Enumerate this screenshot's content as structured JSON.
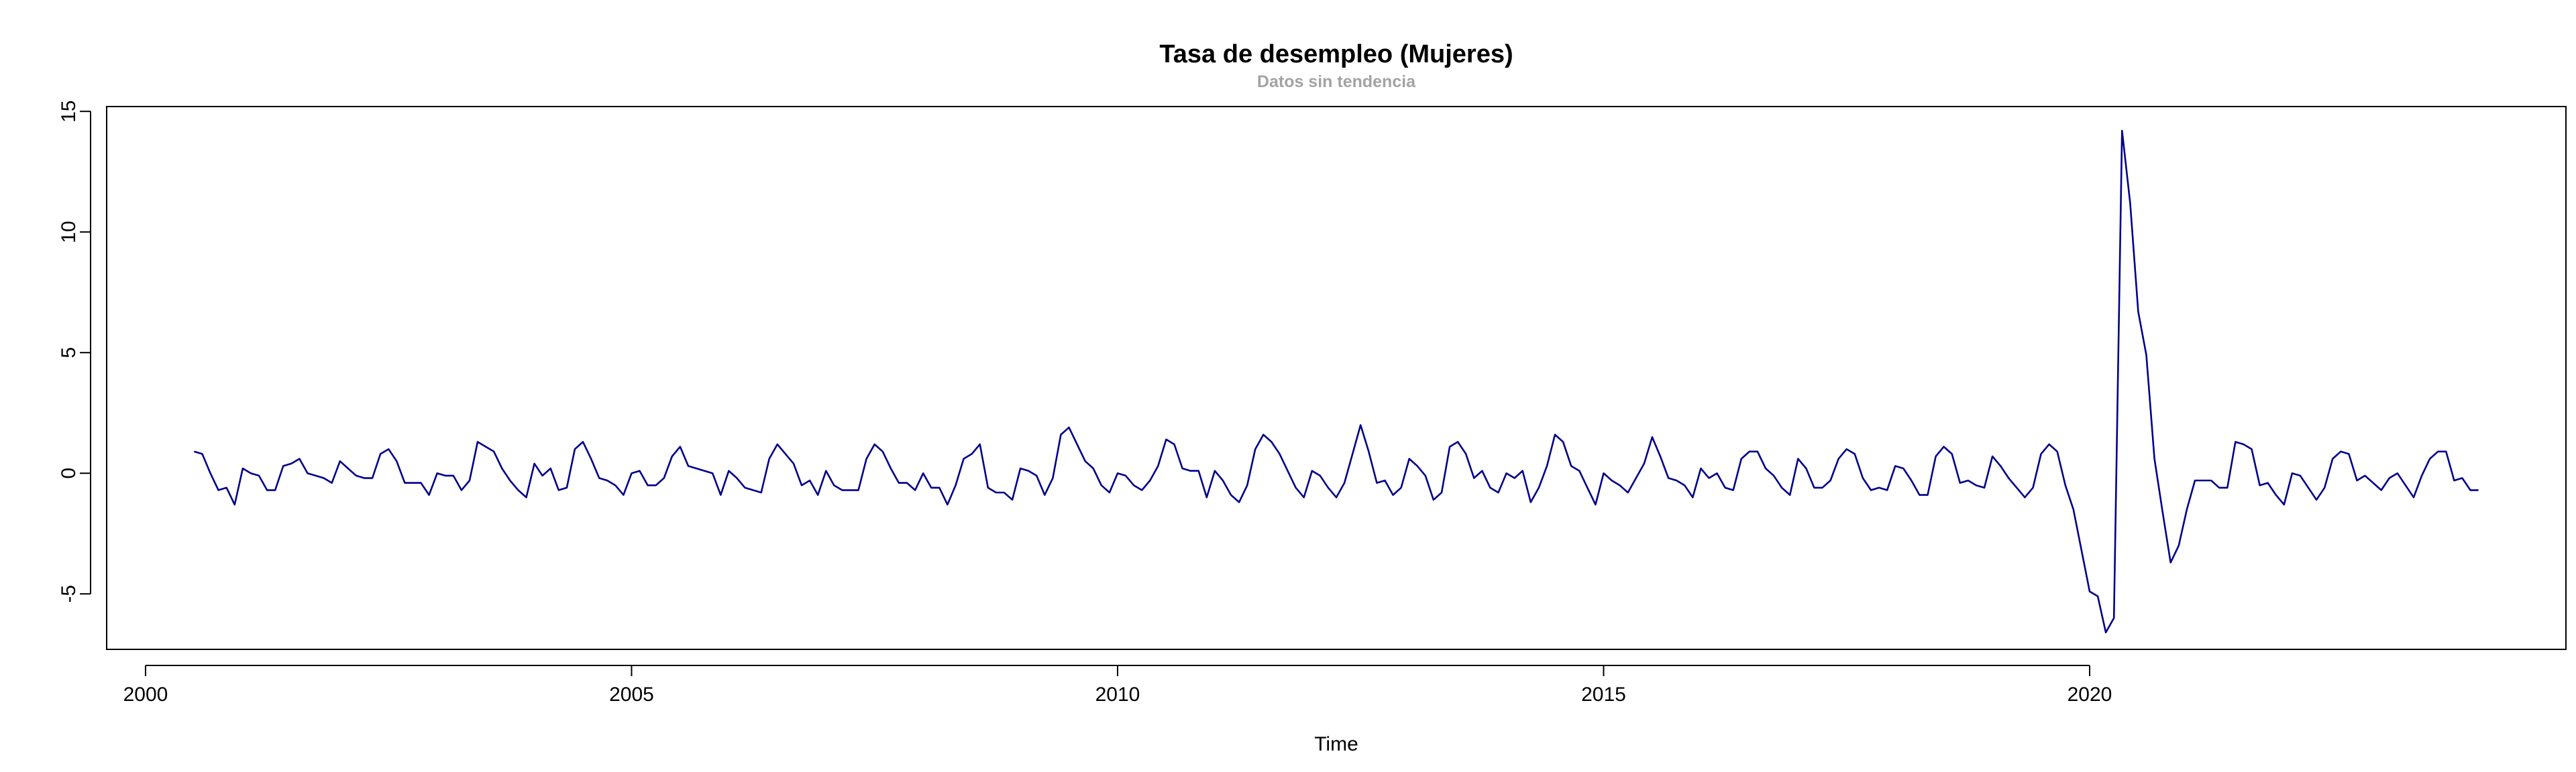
{
  "chart_data": {
    "type": "line",
    "title": "Tasa de desempleo (Mujeres)",
    "subtitle": "Datos sin tendencia",
    "xlabel": "Time",
    "ylabel": "",
    "xlim": [
      1999.6,
      2024.9
    ],
    "ylim": [
      -7.3,
      15.2
    ],
    "x_ticks": [
      2000,
      2005,
      2010,
      2015,
      2020
    ],
    "x_tick_labels": [
      "2000",
      "2005",
      "2010",
      "2015",
      "2020"
    ],
    "y_ticks": [
      -5,
      0,
      5,
      10,
      15
    ],
    "y_tick_labels": [
      "-5",
      "0",
      "5",
      "10",
      "15"
    ],
    "series_color": "#00008B",
    "box": true,
    "grid": false,
    "series": [
      {
        "start": 2000.5,
        "frequency": 12,
        "values": [
          0.9,
          0.8,
          0.0,
          -0.7,
          -0.6,
          -1.3,
          0.2,
          0.0,
          -0.1,
          -0.7,
          -0.7,
          0.3,
          0.4,
          0.6,
          0.0,
          -0.1,
          -0.2,
          -0.4,
          0.5,
          0.2,
          -0.1,
          -0.2,
          -0.2,
          0.8,
          1.0,
          0.5,
          -0.4,
          -0.4,
          -0.4,
          -0.9,
          0.0,
          -0.1,
          -0.1,
          -0.7,
          -0.3,
          1.3,
          1.1,
          0.9,
          0.2,
          -0.3,
          -0.7,
          -1.0,
          0.4,
          -0.1,
          0.2,
          -0.7,
          -0.6,
          1.0,
          1.3,
          0.6,
          -0.2,
          -0.3,
          -0.5,
          -0.9,
          0.0,
          0.1,
          -0.5,
          -0.5,
          -0.2,
          0.7,
          1.1,
          0.3,
          0.2,
          0.1,
          0.0,
          -0.9,
          0.1,
          -0.2,
          -0.6,
          -0.7,
          -0.8,
          0.6,
          1.2,
          0.8,
          0.4,
          -0.5,
          -0.3,
          -0.9,
          0.1,
          -0.5,
          -0.7,
          -0.7,
          -0.7,
          0.6,
          1.2,
          0.9,
          0.2,
          -0.4,
          -0.4,
          -0.7,
          0.0,
          -0.6,
          -0.6,
          -1.3,
          -0.5,
          0.6,
          0.8,
          1.2,
          -0.6,
          -0.8,
          -0.8,
          -1.1,
          0.2,
          0.1,
          -0.1,
          -0.9,
          -0.2,
          1.6,
          1.9,
          1.2,
          0.5,
          0.2,
          -0.5,
          -0.8,
          0.0,
          -0.1,
          -0.5,
          -0.7,
          -0.3,
          0.3,
          1.4,
          1.2,
          0.2,
          0.1,
          0.1,
          -1.0,
          0.1,
          -0.3,
          -0.9,
          -1.2,
          -0.5,
          1.0,
          1.6,
          1.3,
          0.8,
          0.1,
          -0.6,
          -1.0,
          0.1,
          -0.1,
          -0.6,
          -1.0,
          -0.4,
          0.8,
          2.0,
          0.9,
          -0.4,
          -0.3,
          -0.9,
          -0.6,
          0.6,
          0.3,
          -0.1,
          -1.1,
          -0.8,
          1.1,
          1.3,
          0.8,
          -0.2,
          0.1,
          -0.6,
          -0.8,
          0.0,
          -0.2,
          0.1,
          -1.2,
          -0.6,
          0.3,
          1.6,
          1.3,
          0.3,
          0.1,
          -0.6,
          -1.3,
          0.0,
          -0.3,
          -0.5,
          -0.8,
          -0.2,
          0.4,
          1.5,
          0.7,
          -0.2,
          -0.3,
          -0.5,
          -1.0,
          0.2,
          -0.2,
          0.0,
          -0.6,
          -0.7,
          0.6,
          0.9,
          0.9,
          0.2,
          -0.1,
          -0.6,
          -0.9,
          0.6,
          0.2,
          -0.6,
          -0.6,
          -0.3,
          0.6,
          1.0,
          0.8,
          -0.2,
          -0.7,
          -0.6,
          -0.7,
          0.3,
          0.2,
          -0.3,
          -0.9,
          -0.9,
          0.7,
          1.1,
          0.8,
          -0.4,
          -0.3,
          -0.5,
          -0.6,
          0.7,
          0.3,
          -0.2,
          -0.6,
          -1.0,
          -0.6,
          0.8,
          1.2,
          0.9,
          -0.5,
          -1.5,
          -3.2,
          -4.9,
          -5.1,
          -6.6,
          -6.0,
          14.2,
          11.2,
          6.7,
          4.9,
          0.6,
          -1.6,
          -3.7,
          -3.0,
          -1.5,
          -0.3,
          -0.3,
          -0.3,
          -0.6,
          -0.6,
          1.3,
          1.2,
          1.0,
          -0.5,
          -0.4,
          -0.9,
          -1.3,
          0.0,
          -0.1,
          -0.6,
          -1.1,
          -0.6,
          0.6,
          0.9,
          0.8,
          -0.3,
          -0.1,
          -0.4,
          -0.7,
          -0.2,
          0.0,
          -0.5,
          -1.0,
          -0.1,
          0.6,
          0.9,
          0.9,
          -0.3,
          -0.2,
          -0.7,
          -0.7
        ]
      }
    ]
  }
}
